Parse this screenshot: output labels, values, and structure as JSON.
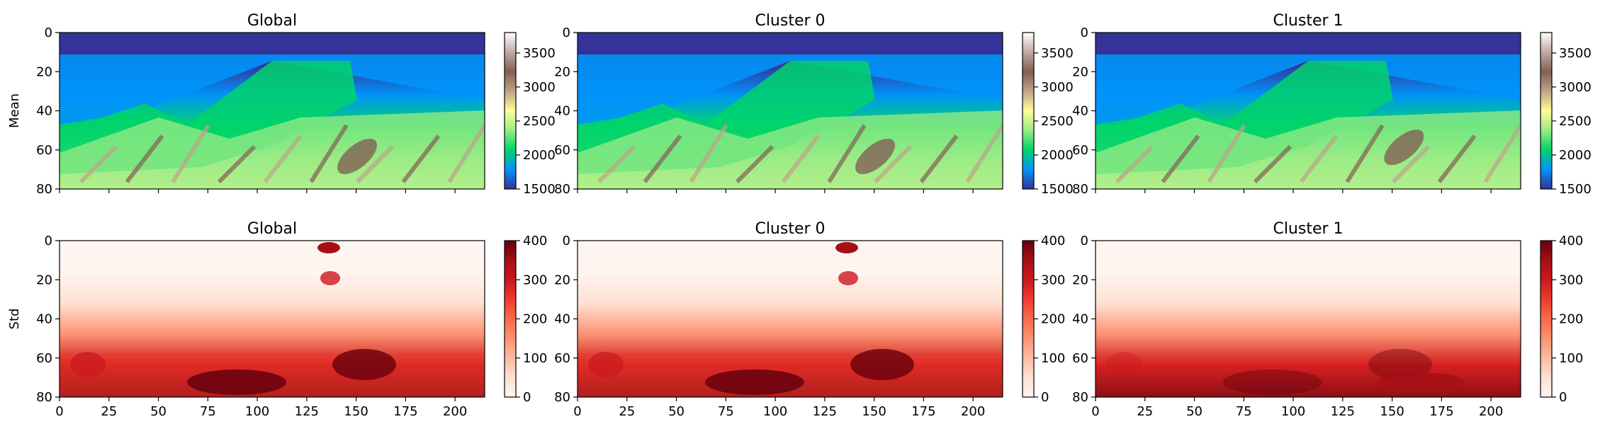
{
  "chart_data": {
    "type": "heatmap",
    "grid": false,
    "colors": {
      "terrain": [
        "#333399",
        "#0094f9",
        "#00d46a",
        "#99eb85",
        "#fefe98",
        "#bfa389",
        "#826055",
        "#c0aaa5",
        "#ffffff"
      ],
      "reds": [
        "#fff5f0",
        "#fee0d2",
        "#fcbba1",
        "#fc9272",
        "#fb6a4a",
        "#ef3b2c",
        "#cb181d",
        "#a50f15",
        "#67000d"
      ]
    },
    "rows": [
      {
        "ylabel": "Mean",
        "colormap": "terrain",
        "colorbar": {
          "min": 1500,
          "max": 3800,
          "ticks": [
            "1500",
            "2000",
            "2500",
            "3000",
            "3500"
          ]
        },
        "panels": [
          {
            "title": "Global"
          },
          {
            "title": "Cluster 0"
          },
          {
            "title": "Cluster 1"
          }
        ]
      },
      {
        "ylabel": "Std",
        "colormap": "reds",
        "colorbar": {
          "min": 0,
          "max": 400,
          "ticks": [
            "0",
            "100",
            "200",
            "300",
            "400"
          ]
        },
        "panels": [
          {
            "title": "Global"
          },
          {
            "title": "Cluster 0"
          },
          {
            "title": "Cluster 1"
          }
        ]
      }
    ],
    "x_axis": {
      "range": [
        0,
        215
      ],
      "ticks": [
        "0",
        "25",
        "50",
        "75",
        "100",
        "125",
        "150",
        "175",
        "200"
      ],
      "shown_on_row": 1
    },
    "y_axis": {
      "range": [
        0,
        80
      ],
      "inverted": true,
      "ticks": [
        "0",
        "20",
        "40",
        "60",
        "80"
      ]
    }
  }
}
